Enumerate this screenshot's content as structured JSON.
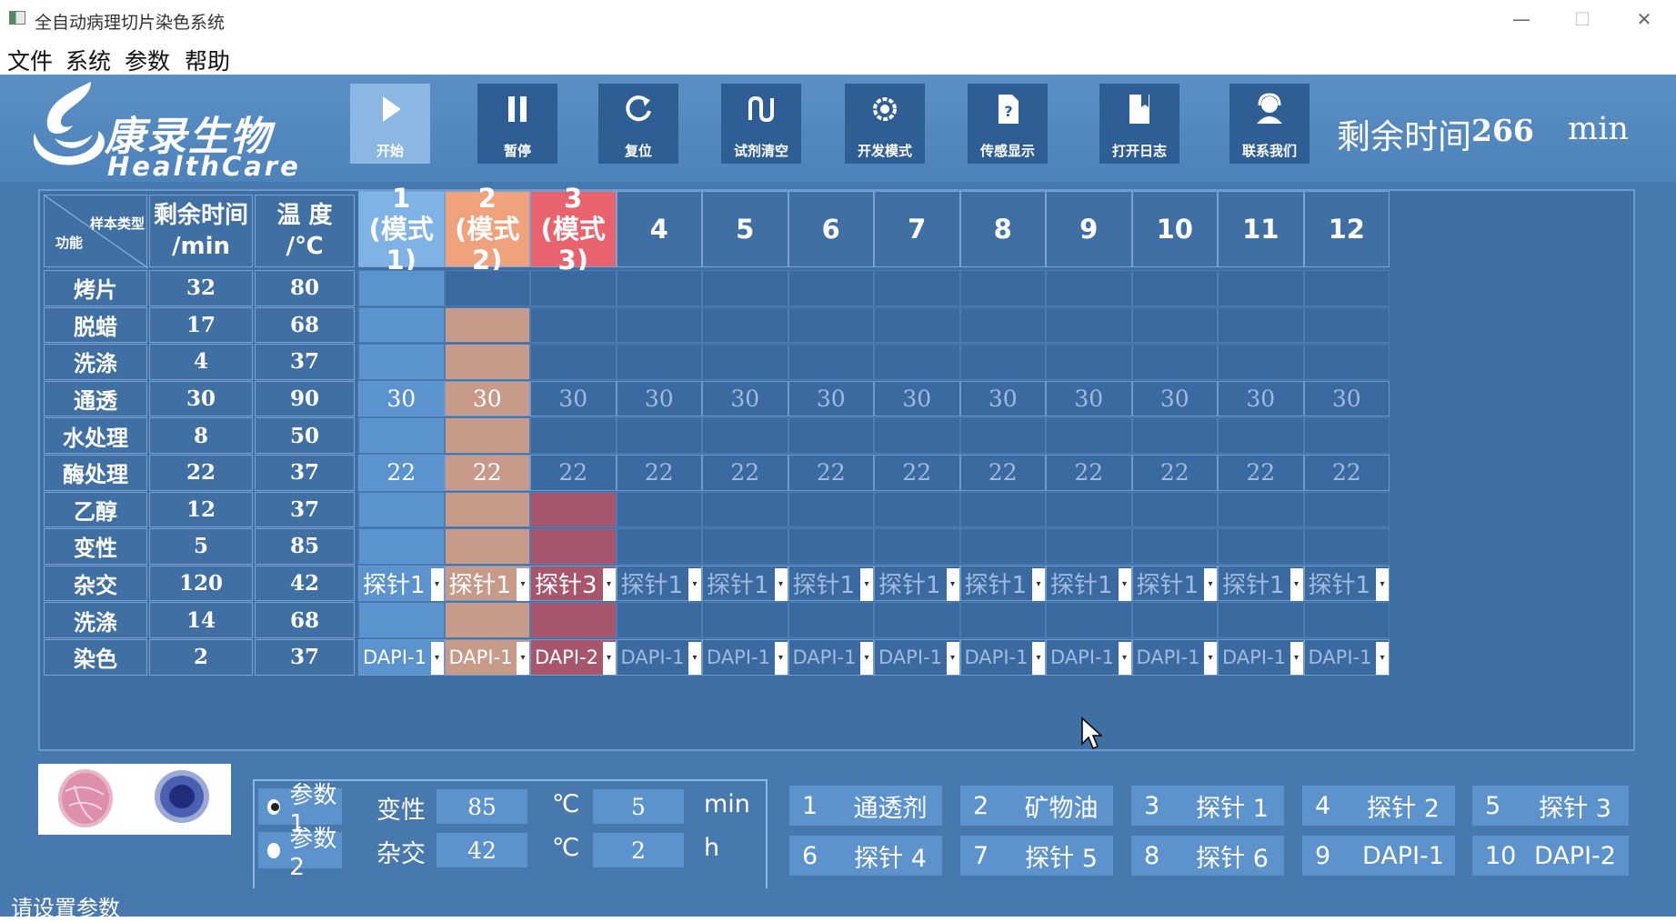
{
  "window": {
    "title": "全自动病理切片染色系统",
    "min": "—",
    "max": "☐",
    "close": "✕"
  },
  "menu": [
    "文件",
    "系统",
    "参数",
    "帮助"
  ],
  "logo": {
    "cn": "康录生物",
    "en": "HealthCare"
  },
  "toolbar": [
    {
      "label": "开始",
      "icon": "play-icon",
      "active": true
    },
    {
      "label": "暂停",
      "icon": "pause-icon",
      "active": false
    },
    {
      "label": "复位",
      "icon": "reset-icon",
      "active": false
    },
    {
      "label": "试剂清空",
      "icon": "reagent-clear-icon",
      "active": false
    },
    {
      "label": "开发模式",
      "icon": "gear-icon",
      "active": false
    },
    {
      "label": "传感显示",
      "icon": "sensor-file-icon",
      "active": false
    },
    {
      "label": "打开日志",
      "icon": "log-icon",
      "active": false
    },
    {
      "label": "联系我们",
      "icon": "contact-icon",
      "active": false
    }
  ],
  "remaining": {
    "label": "剩余时间",
    "value": "266",
    "unit": "min"
  },
  "grid": {
    "corner": {
      "top": "样本类型",
      "bottom": "功能"
    },
    "time_header": [
      "剩余时间",
      "/min"
    ],
    "temp_header": [
      "温 度",
      "/℃"
    ],
    "columns": [
      {
        "num": "1",
        "mode": "(模式1)",
        "color": "#7fb2e5"
      },
      {
        "num": "2",
        "mode": "(模式2)",
        "color": "#f0a27c"
      },
      {
        "num": "3",
        "mode": "(模式3)",
        "color": "#e8636e"
      },
      {
        "num": "4",
        "mode": ""
      },
      {
        "num": "5",
        "mode": ""
      },
      {
        "num": "6",
        "mode": ""
      },
      {
        "num": "7",
        "mode": ""
      },
      {
        "num": "8",
        "mode": ""
      },
      {
        "num": "9",
        "mode": ""
      },
      {
        "num": "10",
        "mode": ""
      },
      {
        "num": "11",
        "mode": ""
      },
      {
        "num": "12",
        "mode": ""
      }
    ],
    "rows": [
      {
        "name": "烤片",
        "time": "32",
        "temp": "80"
      },
      {
        "name": "脱蜡",
        "time": "17",
        "temp": "68"
      },
      {
        "name": "洗涤",
        "time": "4",
        "temp": "37"
      },
      {
        "name": "通透",
        "time": "30",
        "temp": "90",
        "cell_value": "30"
      },
      {
        "name": "水处理",
        "time": "8",
        "temp": "50"
      },
      {
        "name": "酶处理",
        "time": "22",
        "temp": "37",
        "cell_value": "22"
      },
      {
        "name": "乙醇",
        "time": "12",
        "temp": "37"
      },
      {
        "name": "变性",
        "time": "5",
        "temp": "85"
      },
      {
        "name": "杂交",
        "time": "120",
        "temp": "42",
        "combo": [
          "探针1",
          "探针1",
          "探针3",
          "探针1",
          "探针1",
          "探针1",
          "探针1",
          "探针1",
          "探针1",
          "探针1",
          "探针1",
          "探针1"
        ]
      },
      {
        "name": "洗涤",
        "time": "14",
        "temp": "68"
      },
      {
        "name": "染色",
        "time": "2",
        "temp": "37",
        "combo": [
          "DAPI-1",
          "DAPI-1",
          "DAPI-2",
          "DAPI-1",
          "DAPI-1",
          "DAPI-1",
          "DAPI-1",
          "DAPI-1",
          "DAPI-1",
          "DAPI-1",
          "DAPI-1",
          "DAPI-1"
        ]
      }
    ],
    "active_rows": [
      [
        0,
        1,
        2,
        3,
        4,
        5,
        6,
        7,
        8,
        9,
        10
      ],
      [
        1,
        2,
        3,
        4,
        5,
        6,
        7,
        8,
        9,
        10
      ],
      [
        6,
        7,
        8,
        9,
        10
      ]
    ]
  },
  "params": [
    {
      "label": "参数1",
      "selected": true,
      "step": "变性",
      "temp": "85",
      "temp_unit": "℃",
      "time": "5",
      "time_unit": "min"
    },
    {
      "label": "参数2",
      "selected": false,
      "step": "杂交",
      "temp": "42",
      "temp_unit": "℃",
      "time": "2",
      "time_unit": "h"
    }
  ],
  "reagents": [
    {
      "n": "1",
      "name": "通透剂"
    },
    {
      "n": "2",
      "name": "矿物油"
    },
    {
      "n": "3",
      "name": "探针 1"
    },
    {
      "n": "4",
      "name": "探针 2"
    },
    {
      "n": "5",
      "name": "探针 3"
    },
    {
      "n": "6",
      "name": "探针 4"
    },
    {
      "n": "7",
      "name": "探针 5"
    },
    {
      "n": "8",
      "name": "探针 6"
    },
    {
      "n": "9",
      "name": "DAPI-1"
    },
    {
      "n": "10",
      "name": "DAPI-2"
    }
  ],
  "status": "请设置参数"
}
